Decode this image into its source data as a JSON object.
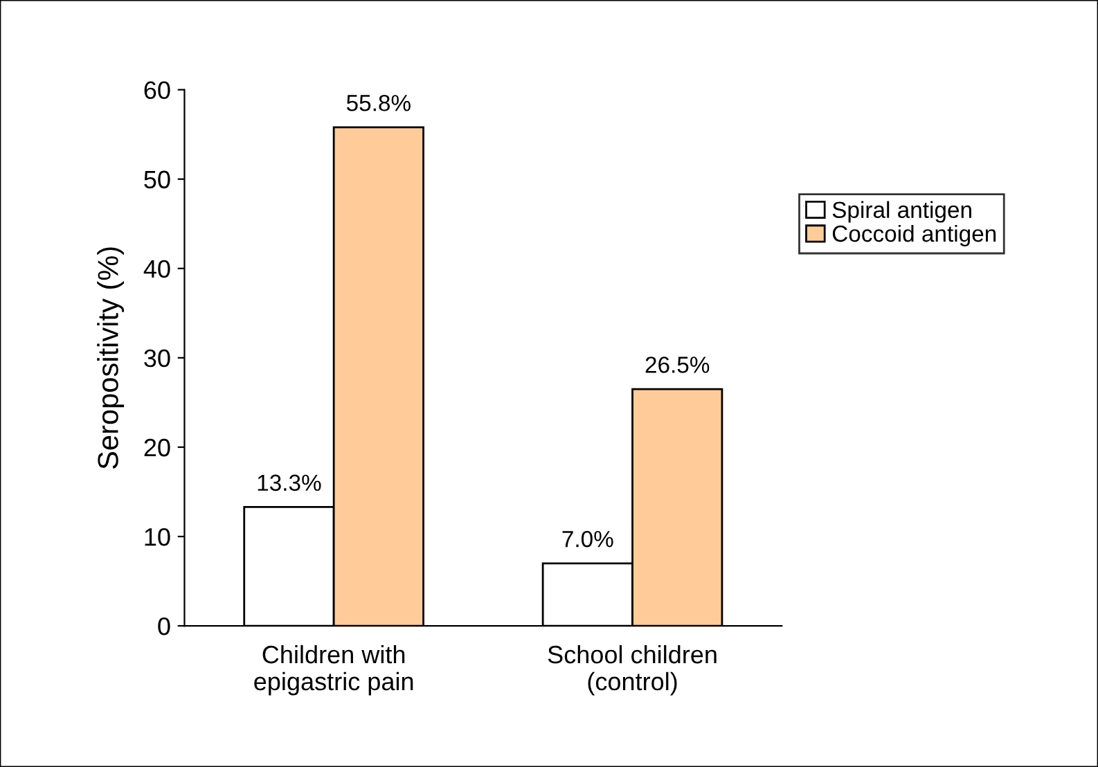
{
  "chart_data": {
    "type": "bar",
    "ylabel": "Seropositivity (%)",
    "categories": [
      "Children with\nepigastric pain",
      "School children\n(control)"
    ],
    "series": [
      {
        "name": "Spiral antigen",
        "color": "#ffffff",
        "values": [
          13.3,
          7.0
        ],
        "value_labels": [
          "13.3%",
          "7.0%"
        ]
      },
      {
        "name": "Coccoid antigen",
        "color": "#ffcc99",
        "values": [
          55.8,
          26.5
        ],
        "value_labels": [
          "55.8%",
          "26.5%"
        ]
      }
    ],
    "ylim": [
      0,
      60
    ],
    "yticks": [
      0,
      10,
      20,
      30,
      40,
      50,
      60
    ],
    "grid": false,
    "legend": "right"
  }
}
